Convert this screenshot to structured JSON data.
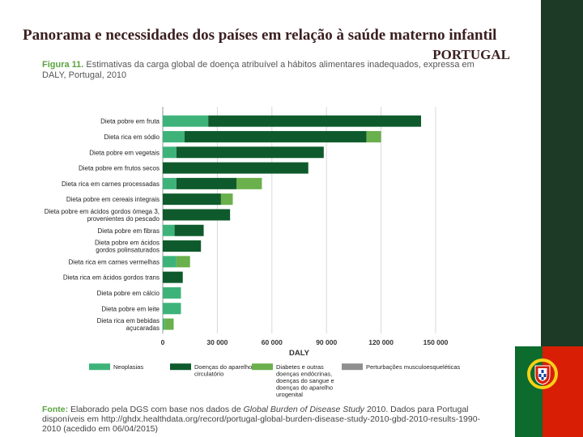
{
  "slide": {
    "title": "Panorama e necessidades dos países em relação à saúde materno infantil",
    "subtitle": "PORTUGAL"
  },
  "figure": {
    "label": "Figura 11.",
    "caption": "Estimativas da carga global de doença atribuível a hábitos alimentares inadequados, expressa em DALY, Portugal, 2010"
  },
  "source": {
    "label": "Fonte:",
    "text_before": "Elaborado pela DGS com base nos dados de",
    "study": "Global Burden of Disease Study",
    "text_after": "2010. Dados para Portugal disponíveis em http://ghdx.healthdata.org/record/portugal-global-burden-disease-study-2010-gbd-2010-results-1990-2010 (acedido em 06/04/2015)"
  },
  "chart_data": {
    "type": "bar",
    "orientation": "horizontal",
    "stacked": true,
    "xlabel": "DALY",
    "xlim": [
      0,
      150000
    ],
    "xticks": [
      0,
      30000,
      60000,
      90000,
      120000,
      150000
    ],
    "xtick_labels": [
      "0",
      "30 000",
      "60 000",
      "90 000",
      "120 000",
      "150 000"
    ],
    "categories": [
      "Dieta pobre em fruta",
      "Dieta rica em sódio",
      "Dieta pobre em vegetais",
      "Dieta pobre em frutos secos",
      "Dieta rica em carnes processadas",
      "Dieta pobre em cereais integrais",
      "Dieta pobre em ácidos gordos ómega 3, provenientes do pescado",
      "Dieta pobre em fibras",
      "Dieta pobre em ácidos gordos polinsaturados",
      "Dieta rica em carnes vermelhas",
      "Dieta rica em ácidos gordos trans",
      "Dieta pobre em cálcio",
      "Dieta pobre em leite",
      "Dieta rica em bebidas açucaradas"
    ],
    "series": [
      {
        "name": "Neoplasias",
        "color": "#3db37a",
        "values": [
          25000,
          12000,
          7500,
          0,
          7500,
          0,
          0,
          6500,
          0,
          7500,
          0,
          10000,
          10000,
          1000
        ]
      },
      {
        "name": "Doenças do aparelho circulatório",
        "color": "#0e5a2c",
        "values": [
          117000,
          100000,
          81000,
          80000,
          33000,
          32000,
          37000,
          16000,
          21000,
          0,
          11000,
          0,
          0,
          0
        ]
      },
      {
        "name": "Diabetes e outras doenças endócrinas, doenças do sangue e doenças do aparelho urogenital",
        "color": "#6ab04c",
        "values": [
          0,
          8000,
          0,
          0,
          14000,
          6500,
          0,
          0,
          0,
          7500,
          0,
          0,
          0,
          5000
        ]
      },
      {
        "name": "Perturbações musculoesqueléticas",
        "color": "#8f8f8f",
        "values": [
          0,
          0,
          0,
          0,
          0,
          0,
          0,
          0,
          0,
          0,
          0,
          0,
          0,
          0
        ]
      }
    ]
  }
}
